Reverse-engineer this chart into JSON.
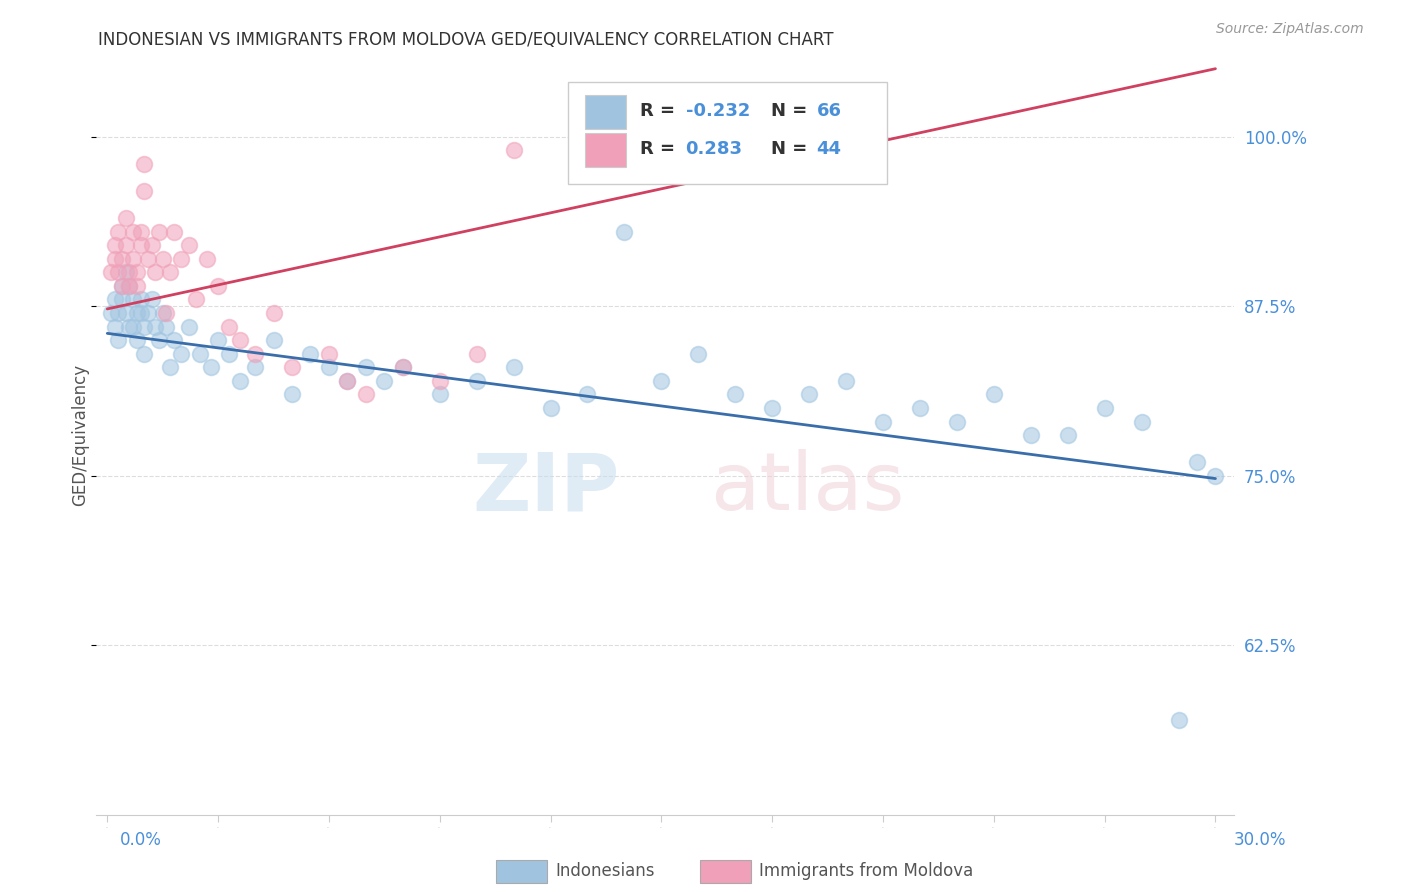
{
  "title": "INDONESIAN VS IMMIGRANTS FROM MOLDOVA GED/EQUIVALENCY CORRELATION CHART",
  "source": "Source: ZipAtlas.com",
  "ylabel": "GED/Equivalency",
  "color_blue": "#a0c4e0",
  "color_pink": "#f0a0b8",
  "color_blue_line": "#3a6eaa",
  "color_pink_line": "#d04060",
  "color_blue_text": "#4a90d9",
  "xlim_lo": -0.003,
  "xlim_hi": 0.305,
  "ylim_lo": 0.5,
  "ylim_hi": 1.06,
  "yticks": [
    0.625,
    0.75,
    0.875,
    1.0
  ],
  "ytick_labels": [
    "62.5%",
    "75.0%",
    "87.5%",
    "100.0%"
  ],
  "label_indonesians": "Indonesians",
  "label_moldova": "Immigrants from Moldova",
  "trend_blue_x0": 0.0,
  "trend_blue_y0": 0.855,
  "trend_blue_x1": 0.3,
  "trend_blue_y1": 0.748,
  "trend_pink_x0": 0.0,
  "trend_pink_y0": 0.873,
  "trend_pink_x1": 0.3,
  "trend_pink_y1": 1.05,
  "indo_x": [
    0.001,
    0.002,
    0.002,
    0.003,
    0.003,
    0.004,
    0.004,
    0.005,
    0.005,
    0.006,
    0.006,
    0.007,
    0.007,
    0.008,
    0.008,
    0.009,
    0.009,
    0.01,
    0.01,
    0.011,
    0.012,
    0.013,
    0.014,
    0.015,
    0.016,
    0.017,
    0.018,
    0.02,
    0.022,
    0.025,
    0.028,
    0.03,
    0.033,
    0.036,
    0.04,
    0.045,
    0.05,
    0.055,
    0.06,
    0.065,
    0.07,
    0.075,
    0.08,
    0.09,
    0.1,
    0.11,
    0.12,
    0.13,
    0.14,
    0.15,
    0.16,
    0.17,
    0.18,
    0.19,
    0.2,
    0.21,
    0.22,
    0.23,
    0.24,
    0.25,
    0.26,
    0.27,
    0.28,
    0.29,
    0.295,
    0.3
  ],
  "indo_y": [
    0.87,
    0.88,
    0.86,
    0.85,
    0.87,
    0.89,
    0.88,
    0.87,
    0.9,
    0.86,
    0.89,
    0.88,
    0.86,
    0.87,
    0.85,
    0.88,
    0.87,
    0.86,
    0.84,
    0.87,
    0.88,
    0.86,
    0.85,
    0.87,
    0.86,
    0.83,
    0.85,
    0.84,
    0.86,
    0.84,
    0.83,
    0.85,
    0.84,
    0.82,
    0.83,
    0.85,
    0.81,
    0.84,
    0.83,
    0.82,
    0.83,
    0.82,
    0.83,
    0.81,
    0.82,
    0.83,
    0.8,
    0.81,
    0.93,
    0.82,
    0.84,
    0.81,
    0.8,
    0.81,
    0.82,
    0.79,
    0.8,
    0.79,
    0.81,
    0.78,
    0.78,
    0.8,
    0.79,
    0.57,
    0.76,
    0.75
  ],
  "mold_x": [
    0.001,
    0.002,
    0.002,
    0.003,
    0.003,
    0.004,
    0.004,
    0.005,
    0.005,
    0.006,
    0.006,
    0.007,
    0.007,
    0.008,
    0.008,
    0.009,
    0.009,
    0.01,
    0.01,
    0.011,
    0.012,
    0.013,
    0.014,
    0.015,
    0.016,
    0.017,
    0.018,
    0.02,
    0.022,
    0.024,
    0.027,
    0.03,
    0.033,
    0.036,
    0.04,
    0.045,
    0.05,
    0.06,
    0.065,
    0.07,
    0.08,
    0.09,
    0.1,
    0.11
  ],
  "mold_y": [
    0.9,
    0.91,
    0.92,
    0.9,
    0.93,
    0.91,
    0.89,
    0.92,
    0.94,
    0.9,
    0.89,
    0.91,
    0.93,
    0.9,
    0.89,
    0.92,
    0.93,
    0.98,
    0.96,
    0.91,
    0.92,
    0.9,
    0.93,
    0.91,
    0.87,
    0.9,
    0.93,
    0.91,
    0.92,
    0.88,
    0.91,
    0.89,
    0.86,
    0.85,
    0.84,
    0.87,
    0.83,
    0.84,
    0.82,
    0.81,
    0.83,
    0.82,
    0.84,
    0.99
  ]
}
